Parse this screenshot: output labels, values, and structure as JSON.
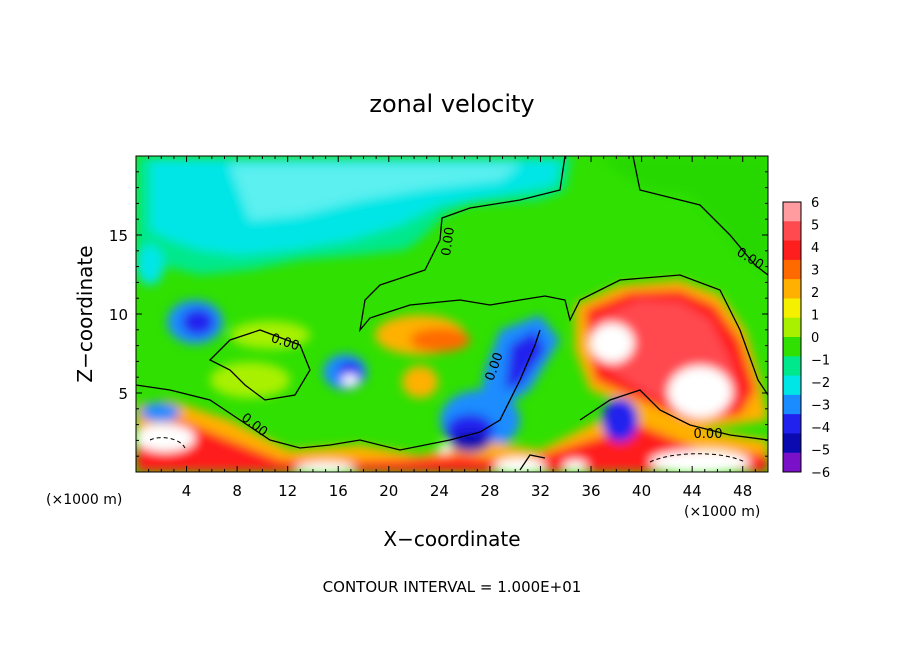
{
  "chart_data": {
    "type": "heatmap",
    "title": "zonal velocity",
    "xlabel": "X−coordinate",
    "ylabel": "Z−coordinate",
    "x_unit_left": "(×1000 m)",
    "x_unit_right": "(×1000 m)",
    "xlim": [
      0,
      50
    ],
    "ylim": [
      0,
      20
    ],
    "x_ticks": [
      4,
      8,
      12,
      16,
      20,
      24,
      28,
      32,
      36,
      40,
      44,
      48
    ],
    "y_ticks": [
      5,
      10,
      15
    ],
    "colorbar": {
      "levels": [
        6,
        5,
        4,
        3,
        2,
        1,
        0,
        -1,
        -2,
        -3,
        -4,
        -5,
        -6
      ],
      "level_labels": [
        "6",
        "5",
        "4",
        "3",
        "2",
        "1",
        "0",
        "−1",
        "−2",
        "−3",
        "−4",
        "−5",
        "−6"
      ],
      "colors": [
        "#ff9ca0",
        "#ff4a50",
        "#ff1e1e",
        "#ff6a00",
        "#ffb000",
        "#f4f000",
        "#a8f000",
        "#30e000",
        "#00e88c",
        "#00e6e6",
        "#1a8cff",
        "#2222ee",
        "#0a0ab0",
        "#7a10c8"
      ]
    },
    "contour_labels": [
      "0.00",
      "0.00",
      "0.00",
      "0.00",
      "0.00",
      "0.00"
    ],
    "footer": "CONTOUR INTERVAL = 1.000E+01"
  }
}
